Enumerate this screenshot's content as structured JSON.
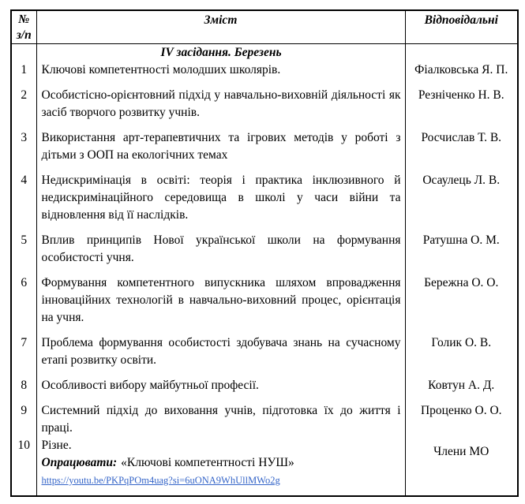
{
  "colors": {
    "border": "#000000",
    "text": "#000000",
    "link": "#3565c8",
    "background": "#ffffff"
  },
  "table": {
    "header": {
      "num_line1": "№",
      "num_line2": "з/п",
      "content": "Зміст",
      "responsible": "Відповідальні"
    },
    "section_title": "IV засідання. Березень",
    "rows": [
      {
        "num": "1",
        "content": "Ключові компетентності молодших школярів.",
        "responsible": "Фіалковська Я. П."
      },
      {
        "num": "2",
        "content": "Особистісно-орієнтовний підхід у навчально-виховній діяльності як засіб творчого розвитку учнів.",
        "responsible": "Резніченко Н. В."
      },
      {
        "num": "3",
        "content": "Використання арт-терапевтичних та ігрових методів у роботі з дітьми з ООП на екологічних темах",
        "responsible": "Росчислав Т. В."
      },
      {
        "num": "4",
        "content": "Недискримінація в освіті: теорія і практика інклюзивного й недискримінаційного середовища в школі у часи війни та відновлення від її наслідків.",
        "responsible": "Осаулець Л. В."
      },
      {
        "num": "5",
        "content": "Вплив принципів Нової української школи на формування особистості учня.",
        "responsible": "Ратушна О. М."
      },
      {
        "num": "6",
        "content": "Формування компетентного випускника шляхом впровадження інноваційних технологій в навчально-виховний процес, орієнтація на учня.",
        "responsible": "Бережна О. О."
      },
      {
        "num": "7",
        "content": "Проблема формування особистості здобувача знань на сучасному етапі розвитку освіти.",
        "responsible": "Голик О. В."
      },
      {
        "num": "8",
        "content": "Особливості вибору майбутньої професії.",
        "responsible": "Ковтун А. Д."
      },
      {
        "num": "9",
        "content": "Системний підхід до виховання учнів, підготовка їх до життя і праці.",
        "responsible": "Проценко О. О."
      },
      {
        "num": "10",
        "content": "Різне.",
        "note_label": "Опрацювати:",
        "note_text": "«Ключові компетентності НУШ»",
        "link": "https://youtu.be/PKPqPOm4uag?si=6uONA9WhUllMWo2g",
        "responsible": "Члени МО"
      }
    ]
  }
}
